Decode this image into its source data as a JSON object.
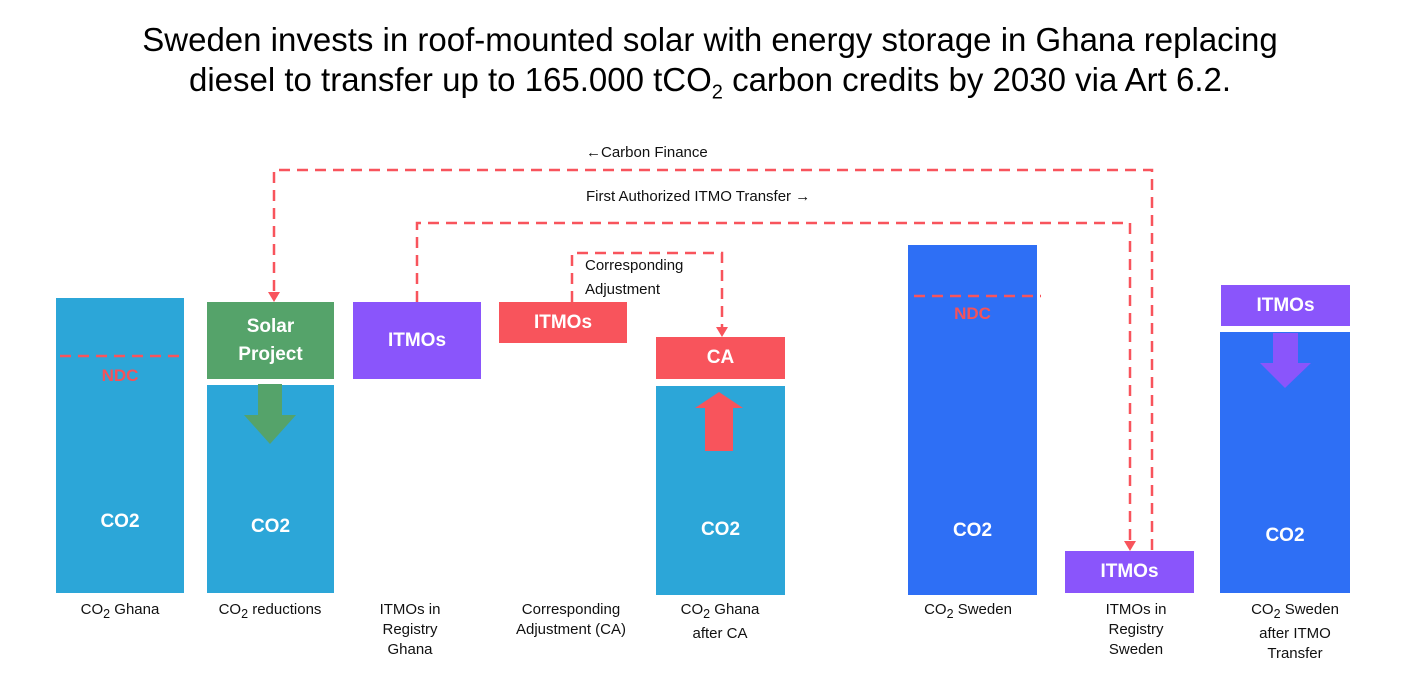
{
  "title": {
    "line1": "Sweden invests in roof-mounted solar with energy storage in Ghana replacing",
    "line2_pre": "diesel to transfer up to 165.000 tCO",
    "line2_sub": "2",
    "line2_post": " carbon credits by 2030 via Art 6.2."
  },
  "colors": {
    "ghana_blue": "#2ca6d8",
    "sweden_blue": "#2e6ff5",
    "green": "#55a36a",
    "purple": "#8a55fb",
    "red": "#f8545c"
  },
  "flows": {
    "carbon_finance": "←Carbon Finance",
    "itmo_transfer": "First Authorized ITMO Transfer →",
    "ca_line1": "Corresponding",
    "ca_line2": "Adjustment"
  },
  "boxes": {
    "co2": "CO2",
    "ndc": "NDC",
    "solar": "Solar Project",
    "itmos": "ITMOs",
    "ca": "CA"
  },
  "labels": {
    "co2_ghana": {
      "pre": "CO",
      "sub": "2",
      "post": " Ghana"
    },
    "co2_reductions": {
      "pre": "CO",
      "sub": "2",
      "post": " reductions"
    },
    "itmos_registry_ghana": [
      "ITMOs in",
      "Registry",
      "Ghana"
    ],
    "ca": [
      "Corresponding",
      "Adjustment (CA)"
    ],
    "co2_ghana_after_ca": {
      "pre": "CO",
      "sub": "2",
      "post": " Ghana",
      "line2": "after CA"
    },
    "co2_sweden": {
      "pre": "CO",
      "sub": "2",
      "post": " Sweden"
    },
    "itmos_registry_sweden": [
      "ITMOs in",
      "Registry",
      "Sweden"
    ],
    "co2_sweden_after": {
      "pre": "CO",
      "sub": "2",
      "post": " Sweden",
      "line2": "after ITMO",
      "line3": "Transfer"
    }
  }
}
